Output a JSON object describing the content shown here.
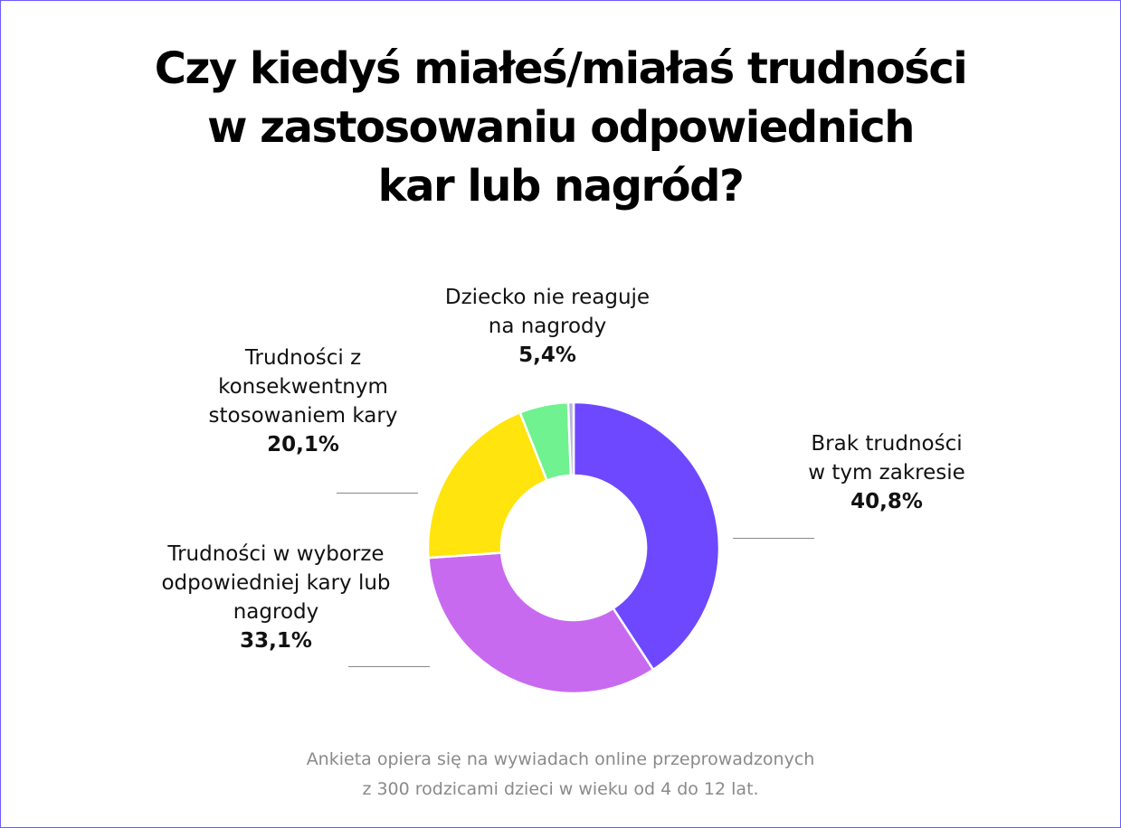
{
  "title_lines": [
    "Czy kiedyś miałeś/miałaś trudności",
    "w zastosowaniu odpowiednich",
    "kar lub nagród?"
  ],
  "footnote_lines": [
    "Ankieta opiera się na wywiadach online przeprowadzonych",
    "z 300 rodzicami dzieci w wieku od 4 do 12 lat."
  ],
  "colors": {
    "frame": "#6b5cff",
    "slice_slice": "#ffffff",
    "leader": "#888888"
  },
  "labels": {
    "brak": {
      "lines": [
        "Brak trudności",
        "w tym zakresie"
      ],
      "pct": "40,8%"
    },
    "wybor": {
      "lines": [
        "Trudności w wyborze",
        "odpowiedniej kary lub",
        "nagrody"
      ],
      "pct": "33,1%"
    },
    "konsekwentne": {
      "lines": [
        "Trudności z",
        "konsekwentnym",
        "stosowaniem kary"
      ],
      "pct": "20,1%"
    },
    "nie_reaguje": {
      "lines": [
        "Dziecko nie reaguje",
        "na nagrody"
      ],
      "pct": "5,4%"
    }
  },
  "chart_data": {
    "type": "pie",
    "variant": "donut",
    "title": "Czy kiedyś miałeś/miałaś trudności w zastosowaniu odpowiednich kar lub nagród?",
    "categories": [
      "Brak trudności w tym zakresie",
      "Trudności w wyborze odpowiedniej kary lub nagrody",
      "Trudności z konsekwentnym stosowaniem kary",
      "Dziecko nie reaguje na nagrody",
      ""
    ],
    "values": [
      40.8,
      33.1,
      20.1,
      5.4,
      0.6
    ],
    "colors": [
      "#6e48ff",
      "#c86af0",
      "#ffe40d",
      "#6ff28f",
      "#b9b0dc"
    ],
    "legend": "none"
  }
}
